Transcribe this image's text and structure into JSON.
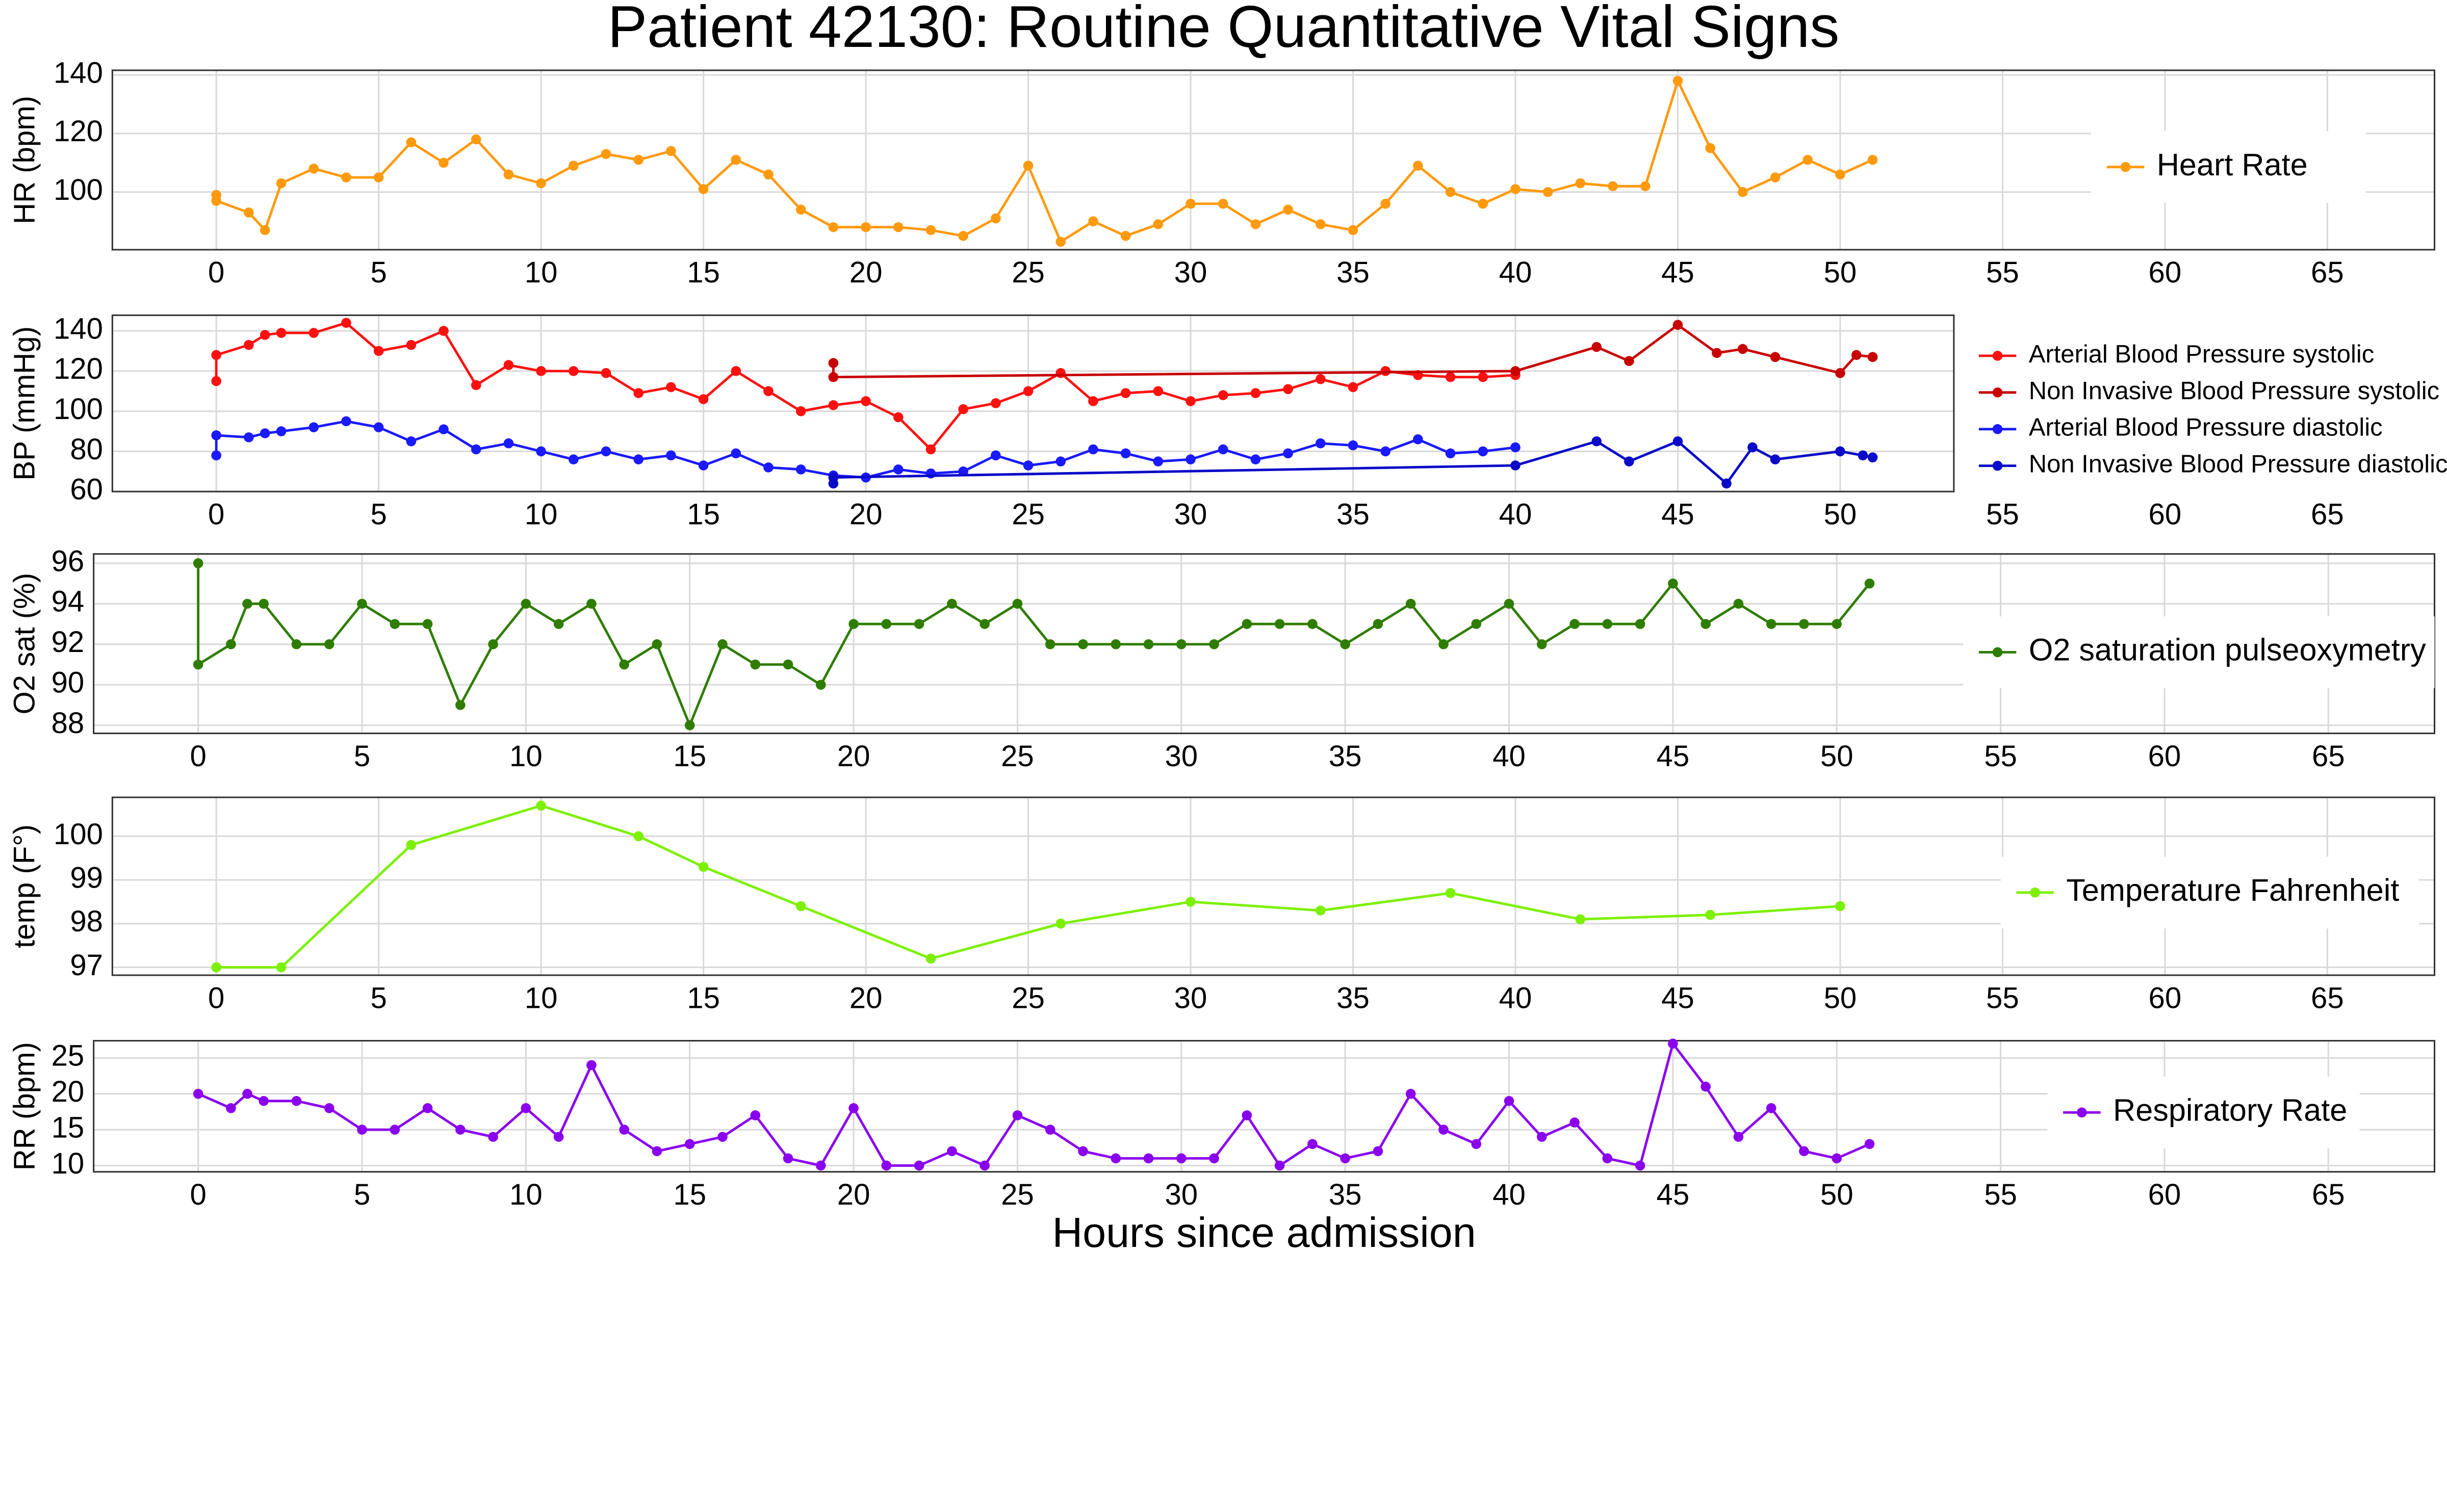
{
  "chart_data": [
    {
      "type": "line",
      "title": "Patient 42130: Routine Quantitative Vital Signs",
      "y_label": "HR (bpm)",
      "xlim": [
        -3.2,
        68.3
      ],
      "ylim": [
        80.3,
        141.6
      ],
      "xticks": [
        0,
        5,
        10,
        15,
        20,
        25,
        30,
        35,
        40,
        45,
        50,
        55,
        60,
        65
      ],
      "yticks": [
        100,
        120,
        140
      ],
      "series": [
        {
          "name": "Heart Rate",
          "color": "#ff9a0e",
          "x": [
            0,
            0,
            1,
            1.5,
            2,
            3,
            4,
            5,
            6,
            7,
            8,
            9,
            10,
            11,
            12,
            13,
            14,
            15,
            16,
            17,
            18,
            19,
            20,
            21,
            22,
            23,
            24,
            25,
            26,
            27,
            28,
            29,
            30,
            31,
            32,
            33,
            34,
            35,
            36,
            37,
            38,
            39,
            40,
            41,
            42,
            43,
            44,
            45,
            46,
            47,
            48,
            49,
            50,
            51
          ],
          "values": [
            99,
            97,
            93,
            87,
            103,
            108,
            105,
            105,
            117,
            110,
            118,
            106,
            103,
            109,
            113,
            111,
            114,
            101,
            111,
            106,
            94,
            88,
            88,
            88,
            87,
            85,
            91,
            109,
            83,
            90,
            85,
            89,
            96,
            96,
            89,
            94,
            89,
            87,
            96,
            109,
            100,
            96,
            101,
            100,
            103,
            102,
            102,
            138,
            115,
            100,
            105,
            111,
            106,
            111
          ]
        }
      ]
    },
    {
      "type": "line",
      "y_label": "BP (mmHg)",
      "xlim": [
        -3.2,
        68.3
      ],
      "ylim": [
        60,
        147.8
      ],
      "xticks": [
        0,
        5,
        10,
        15,
        20,
        25,
        30,
        35,
        40,
        45,
        50,
        55,
        60,
        65
      ],
      "yticks": [
        60,
        80,
        100,
        120,
        140
      ],
      "series": [
        {
          "name": "Arterial Blood Pressure systolic",
          "color": "#ff1010",
          "x": [
            0,
            0,
            1,
            1.5,
            2,
            3,
            4,
            5,
            6,
            7,
            8,
            9,
            10,
            11,
            12,
            13,
            14,
            15,
            16,
            17,
            18,
            19,
            20,
            21,
            22,
            23,
            24,
            25,
            26,
            27,
            28,
            29,
            30,
            31,
            32,
            33,
            34,
            35,
            36,
            37,
            38,
            39,
            40
          ],
          "values": [
            115,
            128,
            133,
            138,
            139,
            139,
            144,
            130,
            133,
            140,
            113,
            123,
            120,
            120,
            119,
            109,
            112,
            106,
            120,
            110,
            100,
            103,
            105,
            97,
            81,
            101,
            104,
            110,
            119,
            105,
            109,
            110,
            105,
            108,
            109,
            111,
            116,
            112,
            120,
            118,
            117,
            117,
            118
          ]
        },
        {
          "name": "Non Invasive Blood Pressure systolic",
          "color": "#c80000",
          "x": [
            19,
            19,
            40,
            42.5,
            43.5,
            45,
            46.2,
            47,
            48,
            50,
            50.5,
            51
          ],
          "values": [
            124,
            117,
            120,
            132,
            125,
            143,
            129,
            131,
            127,
            119,
            128,
            127
          ]
        },
        {
          "name": "Arterial Blood Pressure diastolic",
          "color": "#1a1aff",
          "x": [
            0,
            0,
            1,
            1.5,
            2,
            3,
            4,
            5,
            6,
            7,
            8,
            9,
            10,
            11,
            12,
            13,
            14,
            15,
            16,
            17,
            18,
            19,
            20,
            21,
            22,
            23,
            24,
            25,
            26,
            27,
            28,
            29,
            30,
            31,
            32,
            33,
            34,
            35,
            36,
            37,
            38,
            39,
            40
          ],
          "values": [
            78,
            88,
            87,
            89,
            90,
            92,
            95,
            92,
            85,
            91,
            81,
            84,
            80,
            76,
            80,
            76,
            78,
            73,
            79,
            72,
            71,
            68,
            67,
            71,
            69,
            70,
            78,
            73,
            75,
            81,
            79,
            75,
            76,
            81,
            76,
            79,
            84,
            83,
            80,
            86,
            79,
            80,
            82
          ]
        },
        {
          "name": "Non Invasive Blood Pressure diastolic",
          "color": "#0a0ac8",
          "x": [
            19,
            19,
            40,
            42.5,
            43.5,
            45,
            46.5,
            47.3,
            48,
            50,
            50.7,
            51
          ],
          "values": [
            64,
            67,
            73,
            85,
            75,
            85,
            64,
            82,
            76,
            80,
            78,
            77
          ]
        }
      ]
    },
    {
      "type": "line",
      "y_label": "O2 sat (%)",
      "xlim": [
        -3.19,
        68.24
      ],
      "ylim": [
        87.6,
        96.46
      ],
      "xticks": [
        0,
        5,
        10,
        15,
        20,
        25,
        30,
        35,
        40,
        45,
        50,
        55,
        60,
        65
      ],
      "yticks": [
        88,
        90,
        92,
        94,
        96
      ],
      "series": [
        {
          "name": "O2 saturation pulseoxymetry",
          "color": "#2f7d00",
          "x": [
            0,
            0,
            1,
            1.5,
            2,
            3,
            4,
            5,
            6,
            7,
            8,
            9,
            10,
            11,
            12,
            13,
            14,
            15,
            16,
            17,
            18,
            19,
            20,
            21,
            22,
            23,
            24,
            25,
            26,
            27,
            28,
            29,
            30,
            31,
            32,
            33,
            34,
            35,
            36,
            37,
            38,
            39,
            40,
            41,
            42,
            43,
            44,
            45,
            46,
            47,
            48,
            49,
            50,
            51
          ],
          "values": [
            96,
            91,
            92,
            94,
            94,
            92,
            92,
            94,
            93,
            93,
            89,
            92,
            94,
            93,
            94,
            91,
            92,
            88,
            92,
            91,
            91,
            90,
            93,
            93,
            93,
            94,
            93,
            94,
            92,
            92,
            92,
            92,
            92,
            92,
            93,
            93,
            93,
            92,
            93,
            94,
            92,
            93,
            94,
            92,
            93,
            93,
            93,
            95,
            93,
            94,
            93,
            93,
            93,
            95
          ]
        }
      ]
    },
    {
      "type": "line",
      "y_label": "temp (F°)",
      "xlim": [
        -3.2,
        68.3
      ],
      "ylim": [
        96.82,
        100.89
      ],
      "xticks": [
        0,
        5,
        10,
        15,
        20,
        25,
        30,
        35,
        40,
        45,
        50,
        55,
        60,
        65
      ],
      "yticks": [
        97,
        98,
        99,
        100
      ],
      "series": [
        {
          "name": "Temperature Fahrenheit",
          "color": "#7cf000",
          "x": [
            0,
            2,
            6,
            10,
            13,
            15,
            18,
            22,
            26,
            30,
            34,
            38,
            42,
            46,
            50
          ],
          "values": [
            97,
            97,
            99.8,
            100.7,
            100,
            99.3,
            98.4,
            97.2,
            98,
            98.5,
            98.3,
            98.7,
            98.1,
            98.2,
            98.4
          ]
        }
      ]
    },
    {
      "type": "line",
      "y_label": "RR (bpm)",
      "x_label": "Hours since admission",
      "xlim": [
        -3.19,
        68.24
      ],
      "ylim": [
        9.13,
        27.4
      ],
      "xticks": [
        0,
        5,
        10,
        15,
        20,
        25,
        30,
        35,
        40,
        45,
        50,
        55,
        60,
        65
      ],
      "yticks": [
        10,
        15,
        20,
        25
      ],
      "series": [
        {
          "name": "Respiratory Rate",
          "color": "#8a00ee",
          "x": [
            0,
            1,
            1.5,
            2,
            3,
            4,
            5,
            6,
            7,
            8,
            9,
            10,
            11,
            12,
            13,
            14,
            15,
            16,
            17,
            18,
            19,
            20,
            21,
            22,
            23,
            24,
            25,
            26,
            27,
            28,
            29,
            30,
            31,
            32,
            33,
            34,
            35,
            36,
            37,
            38,
            39,
            40,
            41,
            42,
            43,
            44,
            45,
            46,
            47,
            48,
            49,
            50,
            51
          ],
          "values": [
            20,
            18,
            20,
            19,
            19,
            18,
            15,
            15,
            18,
            15,
            14,
            18,
            14,
            24,
            15,
            12,
            13,
            14,
            17,
            11,
            10,
            18,
            10,
            10,
            12,
            10,
            17,
            15,
            12,
            11,
            11,
            11,
            11,
            17,
            10,
            13,
            11,
            12,
            20,
            15,
            13,
            19,
            14,
            16,
            11,
            10,
            27,
            21,
            14,
            18,
            12,
            11,
            13
          ]
        }
      ]
    }
  ]
}
